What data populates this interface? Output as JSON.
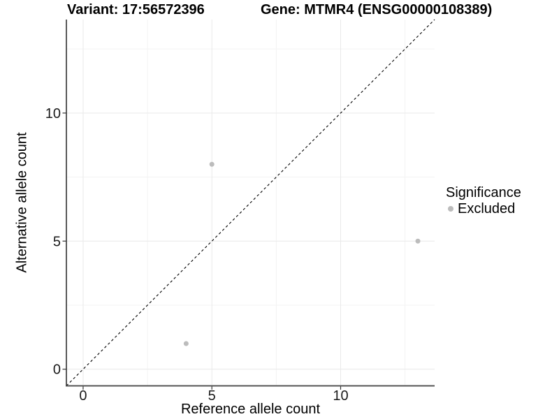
{
  "chart_data": {
    "type": "scatter",
    "title_left": "Variant: 17:56572396",
    "title_right": "Gene: MTMR4 (ENSG00000108389)",
    "xlabel": "Reference allele count",
    "ylabel": "Alternative allele count",
    "xlim": [
      -0.65,
      13.65
    ],
    "ylim": [
      -0.65,
      13.65
    ],
    "x_ticks": [
      0,
      5,
      10
    ],
    "y_ticks": [
      0,
      5,
      10
    ],
    "x_minor_ticks": [
      2.5,
      7.5,
      12.5
    ],
    "y_minor_ticks": [
      2.5,
      7.5,
      12.5
    ],
    "grid": true,
    "identity_line": {
      "style": "dashed",
      "color": "#000000"
    },
    "series": [
      {
        "name": "Excluded",
        "color": "#bcbcbc",
        "points": [
          {
            "x": 4,
            "y": 1
          },
          {
            "x": 5,
            "y": 8
          },
          {
            "x": 13,
            "y": 5
          }
        ]
      }
    ],
    "legend": {
      "title": "Significance",
      "position": "right",
      "items": [
        {
          "label": "Excluded",
          "color": "#bcbcbc"
        }
      ]
    },
    "colors": {
      "grid_major": "#e9e9e9",
      "grid_minor": "#f3f3f3",
      "axis": "#333333",
      "tick_text": "#1a1a1a",
      "point": "#bcbcbc"
    }
  }
}
